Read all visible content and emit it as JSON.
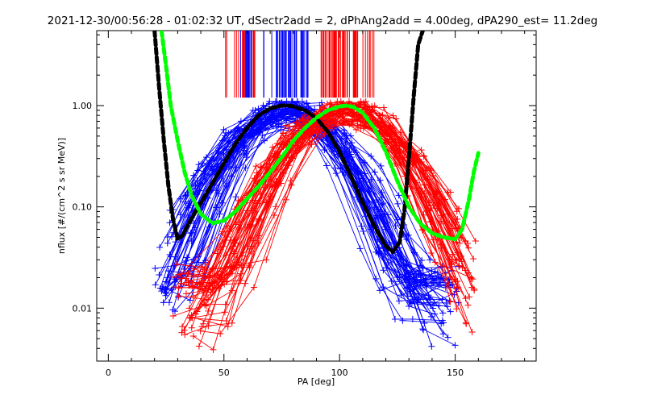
{
  "chart_data": {
    "type": "line",
    "title": "2021-12-30/00:56:28 - 01:02:32 UT, dSectr2add = 2, dPhAng2add = 4.00deg, dPA290_est=  11.2deg",
    "xlabel": "PA [deg]",
    "ylabel": "nflux [#/(cm^2 s sr MeV)]",
    "xlim": [
      -5,
      185
    ],
    "ylim": [
      0.003,
      5.5
    ],
    "yscale": "log",
    "grid": false,
    "x_ticks": [
      0,
      50,
      100,
      150
    ],
    "x_tick_labels": [
      "0",
      "50",
      "100",
      "150"
    ],
    "y_ticks": [
      0.01,
      0.1,
      1.0
    ],
    "y_tick_labels": [
      "0.01",
      "0.10",
      "1.00"
    ],
    "colors": {
      "blue": "#0000ff",
      "red": "#ff0000",
      "black": "#000000",
      "green": "#00ff00"
    },
    "series": [
      {
        "color": "blue",
        "style": "thin lines with + markers",
        "peak_x": 77,
        "peak_y": 1.0,
        "x_range": [
          22,
          150
        ]
      },
      {
        "color": "red",
        "style": "thin lines with + markers",
        "peak_x": 102,
        "peak_y": 1.0,
        "x_range": [
          30,
          158
        ]
      },
      {
        "color": "black",
        "style": "thick dashed fit",
        "x": [
          20,
          22,
          24,
          26,
          28,
          30,
          32,
          35,
          40,
          45,
          50,
          55,
          60,
          65,
          70,
          75,
          78,
          80,
          85,
          90,
          95,
          100,
          105,
          110,
          115,
          120,
          123,
          126,
          128,
          130,
          132,
          134,
          136
        ],
        "y": [
          5.5,
          1.5,
          0.45,
          0.16,
          0.075,
          0.048,
          0.052,
          0.07,
          0.11,
          0.17,
          0.27,
          0.42,
          0.6,
          0.8,
          0.94,
          1.0,
          1.0,
          0.98,
          0.9,
          0.75,
          0.55,
          0.35,
          0.2,
          0.11,
          0.065,
          0.041,
          0.036,
          0.045,
          0.09,
          0.3,
          1.2,
          4.0,
          5.5
        ]
      },
      {
        "color": "green",
        "style": "thick dashed fit",
        "x": [
          23,
          25,
          27,
          30,
          33,
          36,
          40,
          45,
          50,
          55,
          60,
          65,
          70,
          75,
          80,
          85,
          90,
          95,
          100,
          103,
          106,
          110,
          115,
          120,
          125,
          130,
          135,
          140,
          145,
          150,
          153,
          156,
          158,
          160
        ],
        "y": [
          5.5,
          2.4,
          1.0,
          0.45,
          0.22,
          0.13,
          0.085,
          0.069,
          0.073,
          0.09,
          0.12,
          0.16,
          0.22,
          0.31,
          0.45,
          0.6,
          0.76,
          0.9,
          0.98,
          1.0,
          0.97,
          0.85,
          0.6,
          0.35,
          0.18,
          0.1,
          0.068,
          0.055,
          0.05,
          0.048,
          0.06,
          0.12,
          0.22,
          0.34
        ]
      }
    ],
    "annotations": [
      {
        "type": "vertical ticks",
        "color": "blue",
        "x_range": [
          55,
          87
        ],
        "y_range": [
          1.2,
          5.5
        ]
      },
      {
        "type": "vertical ticks",
        "color": "red",
        "x_range": [
          50,
          115
        ],
        "y_range": [
          1.2,
          5.5
        ]
      }
    ]
  }
}
